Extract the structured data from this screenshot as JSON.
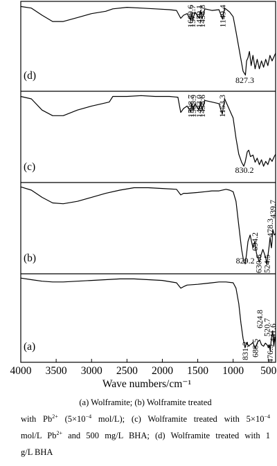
{
  "chart_data": {
    "type": "line",
    "xlabel": "Wave numbers/cm⁻¹",
    "x_ticks": [
      "4000",
      "3500",
      "3000",
      "2500",
      "2000",
      "1500",
      "1000",
      "500"
    ],
    "xlim": [
      4000,
      400
    ],
    "x_reversed": true,
    "y_axis_shown": false,
    "series": [
      {
        "name": "(d)",
        "annotations": [
          "1600.6",
          "1571.7",
          "1479.1",
          "1438.8",
          "1149.4",
          "827.3"
        ],
        "points": [
          [
            4000,
            0.03
          ],
          [
            3850,
            0.05
          ],
          [
            3700,
            0.14
          ],
          [
            3550,
            0.22
          ],
          [
            3400,
            0.22
          ],
          [
            3200,
            0.17
          ],
          [
            3000,
            0.12
          ],
          [
            2800,
            0.09
          ],
          [
            2700,
            0.06
          ],
          [
            2500,
            0.04
          ],
          [
            2300,
            0.05
          ],
          [
            2100,
            0.06
          ],
          [
            1900,
            0.07
          ],
          [
            1800,
            0.08
          ],
          [
            1740,
            0.18
          ],
          [
            1700,
            0.14
          ],
          [
            1650,
            0.12
          ],
          [
            1600,
            0.2
          ],
          [
            1580,
            0.12
          ],
          [
            1570,
            0.2
          ],
          [
            1540,
            0.1
          ],
          [
            1480,
            0.18
          ],
          [
            1460,
            0.08
          ],
          [
            1440,
            0.19
          ],
          [
            1400,
            0.06
          ],
          [
            1300,
            0.08
          ],
          [
            1200,
            0.07
          ],
          [
            1150,
            0.19
          ],
          [
            1120,
            0.05
          ],
          [
            1050,
            0.1
          ],
          [
            1000,
            0.16
          ],
          [
            960,
            0.35
          ],
          [
            900,
            0.65
          ],
          [
            860,
            0.85
          ],
          [
            827,
            0.9
          ],
          [
            810,
            0.72
          ],
          [
            790,
            0.68
          ],
          [
            770,
            0.6
          ],
          [
            745,
            0.78
          ],
          [
            720,
            0.65
          ],
          [
            690,
            0.82
          ],
          [
            660,
            0.7
          ],
          [
            630,
            0.82
          ],
          [
            600,
            0.72
          ],
          [
            570,
            0.8
          ],
          [
            540,
            0.7
          ],
          [
            510,
            0.78
          ],
          [
            480,
            0.65
          ],
          [
            450,
            0.72
          ],
          [
            420,
            0.66
          ],
          [
            400,
            0.62
          ]
        ]
      },
      {
        "name": "(c)",
        "annotations": [
          "1598.7",
          "1565.9",
          "1483.0",
          "1438.6",
          "1153.3",
          "830.2"
        ],
        "points": [
          [
            4000,
            0.03
          ],
          [
            3850,
            0.06
          ],
          [
            3700,
            0.2
          ],
          [
            3550,
            0.27
          ],
          [
            3400,
            0.27
          ],
          [
            3200,
            0.2
          ],
          [
            3000,
            0.15
          ],
          [
            2850,
            0.12
          ],
          [
            2750,
            0.1
          ],
          [
            2700,
            0.03
          ],
          [
            2500,
            0.03
          ],
          [
            2300,
            0.02
          ],
          [
            2100,
            0.03
          ],
          [
            1900,
            0.03
          ],
          [
            1780,
            0.04
          ],
          [
            1740,
            0.23
          ],
          [
            1700,
            0.18
          ],
          [
            1650,
            0.15
          ],
          [
            1600,
            0.22
          ],
          [
            1585,
            0.12
          ],
          [
            1566,
            0.2
          ],
          [
            1540,
            0.12
          ],
          [
            1483,
            0.2
          ],
          [
            1460,
            0.1
          ],
          [
            1438,
            0.2
          ],
          [
            1400,
            0.08
          ],
          [
            1300,
            0.1
          ],
          [
            1200,
            0.12
          ],
          [
            1153,
            0.25
          ],
          [
            1120,
            0.06
          ],
          [
            1050,
            0.2
          ],
          [
            1000,
            0.3
          ],
          [
            960,
            0.55
          ],
          [
            920,
            0.75
          ],
          [
            880,
            0.85
          ],
          [
            850,
            0.9
          ],
          [
            830,
            0.85
          ],
          [
            800,
            0.72
          ],
          [
            780,
            0.7
          ],
          [
            755,
            0.78
          ],
          [
            720,
            0.76
          ],
          [
            690,
            0.85
          ],
          [
            660,
            0.8
          ],
          [
            630,
            0.88
          ],
          [
            600,
            0.82
          ],
          [
            570,
            0.9
          ],
          [
            540,
            0.84
          ],
          [
            510,
            0.88
          ],
          [
            480,
            0.8
          ],
          [
            450,
            0.84
          ],
          [
            420,
            0.78
          ],
          [
            400,
            0.75
          ]
        ]
      },
      {
        "name": "(b)",
        "annotations": [
          "829.2",
          "694.2",
          "630.6",
          "478.3",
          "439.7",
          "524.5"
        ],
        "points": [
          [
            4000,
            0.02
          ],
          [
            3850,
            0.06
          ],
          [
            3700,
            0.15
          ],
          [
            3550,
            0.22
          ],
          [
            3400,
            0.23
          ],
          [
            3200,
            0.2
          ],
          [
            3000,
            0.15
          ],
          [
            2800,
            0.1
          ],
          [
            2600,
            0.06
          ],
          [
            2400,
            0.03
          ],
          [
            2200,
            0.03
          ],
          [
            2000,
            0.04
          ],
          [
            1800,
            0.05
          ],
          [
            1740,
            0.12
          ],
          [
            1700,
            0.1
          ],
          [
            1650,
            0.1
          ],
          [
            1500,
            0.09
          ],
          [
            1400,
            0.08
          ],
          [
            1300,
            0.07
          ],
          [
            1200,
            0.07
          ],
          [
            1100,
            0.05
          ],
          [
            1050,
            0.06
          ],
          [
            1000,
            0.08
          ],
          [
            960,
            0.2
          ],
          [
            920,
            0.5
          ],
          [
            880,
            0.8
          ],
          [
            850,
            0.95
          ],
          [
            829,
            0.98
          ],
          [
            810,
            0.85
          ],
          [
            790,
            0.7
          ],
          [
            760,
            0.62
          ],
          [
            740,
            0.7
          ],
          [
            720,
            0.78
          ],
          [
            694,
            0.7
          ],
          [
            670,
            0.85
          ],
          [
            650,
            0.9
          ],
          [
            630,
            0.96
          ],
          [
            610,
            0.88
          ],
          [
            580,
            0.8
          ],
          [
            560,
            0.85
          ],
          [
            540,
            0.9
          ],
          [
            524,
            0.99
          ],
          [
            505,
            0.85
          ],
          [
            490,
            0.75
          ],
          [
            478,
            0.65
          ],
          [
            460,
            0.78
          ],
          [
            450,
            0.7
          ],
          [
            440,
            0.55
          ],
          [
            420,
            0.62
          ],
          [
            400,
            0.6
          ]
        ]
      },
      {
        "name": "(a)",
        "annotations": [
          "831.2",
          "688.5",
          "624.8",
          "520.7",
          "476.3",
          "441.6"
        ],
        "points": [
          [
            4000,
            0.02
          ],
          [
            3850,
            0.04
          ],
          [
            3700,
            0.06
          ],
          [
            3550,
            0.07
          ],
          [
            3400,
            0.07
          ],
          [
            3200,
            0.06
          ],
          [
            3000,
            0.05
          ],
          [
            2800,
            0.04
          ],
          [
            2600,
            0.03
          ],
          [
            2400,
            0.03
          ],
          [
            2200,
            0.04
          ],
          [
            2000,
            0.05
          ],
          [
            1800,
            0.08
          ],
          [
            1740,
            0.15
          ],
          [
            1700,
            0.13
          ],
          [
            1650,
            0.11
          ],
          [
            1500,
            0.1
          ],
          [
            1400,
            0.09
          ],
          [
            1300,
            0.08
          ],
          [
            1200,
            0.07
          ],
          [
            1100,
            0.07
          ],
          [
            1000,
            0.08
          ],
          [
            960,
            0.15
          ],
          [
            920,
            0.35
          ],
          [
            890,
            0.6
          ],
          [
            860,
            0.8
          ],
          [
            840,
            0.88
          ],
          [
            831,
            0.92
          ],
          [
            810,
            0.85
          ],
          [
            780,
            0.9
          ],
          [
            760,
            0.88
          ],
          [
            740,
            0.87
          ],
          [
            720,
            0.85
          ],
          [
            700,
            0.9
          ],
          [
            688,
            0.93
          ],
          [
            670,
            0.88
          ],
          [
            650,
            0.84
          ],
          [
            625,
            0.82
          ],
          [
            600,
            0.88
          ],
          [
            570,
            0.9
          ],
          [
            545,
            0.86
          ],
          [
            521,
            0.88
          ],
          [
            500,
            0.92
          ],
          [
            490,
            0.88
          ],
          [
            476,
            0.96
          ],
          [
            460,
            0.8
          ],
          [
            441,
            0.7
          ],
          [
            425,
            0.9
          ],
          [
            410,
            0.78
          ],
          [
            400,
            0.85
          ]
        ]
      }
    ]
  },
  "caption": {
    "line1": "(a)  Wolframite;  (b)  Wolframite  treated",
    "line2_a": "with Pb",
    "line2_sup1": "2+",
    "line2_b": " (5×10",
    "line2_sup2": "−4",
    "line2_c": " mol/L); (c) Wolframite treated with 5×10",
    "line2_sup3": "−4",
    "line3_a": "mol/L Pb",
    "line3_sup": "2+",
    "line3_b": " and 500 mg/L BHA; (d) Wolframite treated with 1",
    "line4": "g/L BHA"
  }
}
